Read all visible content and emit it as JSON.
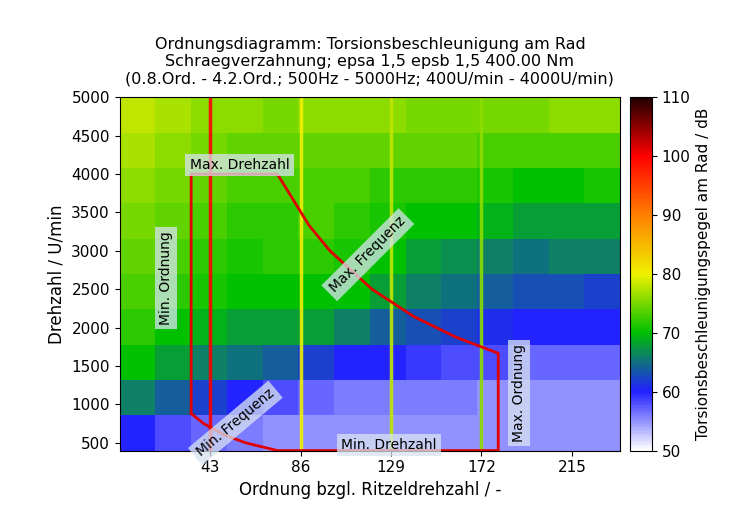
{
  "chart_data": {
    "type": "heatmap",
    "title": "Ordnungsdiagramm: Torsionsbeschleunigung am Rad\nSchraegverzahnung; epsa 1,5 epsb 1,5 400.00 Nm\n(0.8.Ord. - 4.2.Ord.; 500Hz - 5000Hz; 400U/min - 4000U/min)",
    "x_label": "Ordnung bzgl. Ritzeldrehzahl / -",
    "y_label": "Drehzahl / U/min",
    "xlim": [
      0,
      238
    ],
    "ylim": [
      400,
      5000
    ],
    "xticks": [
      43,
      86,
      129,
      172,
      215
    ],
    "yticks": [
      500,
      1000,
      1500,
      2000,
      2500,
      3000,
      3500,
      4000,
      4500,
      5000
    ],
    "x_edges": [
      0,
      17,
      34,
      51,
      68,
      85,
      102,
      119,
      136,
      153,
      170,
      187,
      204,
      221,
      238
    ],
    "y_edges": [
      400,
      860,
      1320,
      1780,
      2240,
      2700,
      3160,
      3620,
      4080,
      4540,
      5000
    ],
    "cells": [
      [
        60,
        58,
        57,
        56,
        55,
        55,
        55,
        55,
        55,
        55,
        55,
        55,
        55,
        55
      ],
      [
        66,
        64,
        62,
        60,
        58,
        57,
        56,
        56,
        56,
        56,
        55,
        55,
        55,
        55
      ],
      [
        70,
        68,
        66,
        65,
        64,
        62,
        60,
        60,
        59,
        58,
        58,
        57,
        57,
        57
      ],
      [
        72,
        70,
        69,
        68,
        68,
        68,
        66,
        64,
        63,
        62,
        61,
        60,
        60,
        60
      ],
      [
        73,
        72,
        71,
        70,
        70,
        70,
        70,
        68,
        66,
        65,
        64,
        63,
        63,
        62
      ],
      [
        74,
        73,
        72,
        71,
        72,
        72,
        71,
        70,
        68,
        67,
        66,
        65,
        66,
        66
      ],
      [
        75,
        74,
        73,
        72,
        72,
        73,
        72,
        71,
        70,
        70,
        69,
        68,
        68,
        68
      ],
      [
        76,
        75,
        74,
        73,
        73,
        73,
        73,
        72,
        72,
        72,
        71,
        70,
        70,
        71
      ],
      [
        77,
        76,
        75,
        74,
        74,
        74,
        74,
        74,
        74,
        74,
        73,
        73,
        73,
        73
      ],
      [
        78,
        77,
        76,
        76,
        75,
        76,
        76,
        76,
        75,
        75,
        75,
        75,
        76,
        76
      ]
    ],
    "order_lines": {
      "x": [
        43,
        86,
        129,
        172
      ],
      "values": [
        100,
        80,
        78,
        76
      ]
    },
    "colorbar_label": "Torsionsbeschleunigungspegel am Rad / dB",
    "colorbar_range": [
      50,
      110
    ],
    "colorbar_ticks": [
      50,
      60,
      70,
      80,
      90,
      100,
      110
    ],
    "boundary": {
      "color": "#e00000",
      "x": [
        34,
        34,
        75,
        90,
        100,
        120,
        140,
        160,
        180,
        180,
        75,
        60,
        50,
        40,
        34
      ],
      "y": [
        882,
        4000,
        4000,
        3333,
        3000,
        2500,
        2143,
        1875,
        1667,
        400,
        400,
        500,
        600,
        750,
        882
      ]
    },
    "annotations": [
      {
        "text": "Max. Drehzahl"
      },
      {
        "text": "Min. Ordnung"
      },
      {
        "text": "Max. Frequenz"
      },
      {
        "text": "Min. Frequenz"
      },
      {
        "text": "Min. Drehzahl"
      },
      {
        "text": "Max. Ordnung"
      }
    ]
  }
}
